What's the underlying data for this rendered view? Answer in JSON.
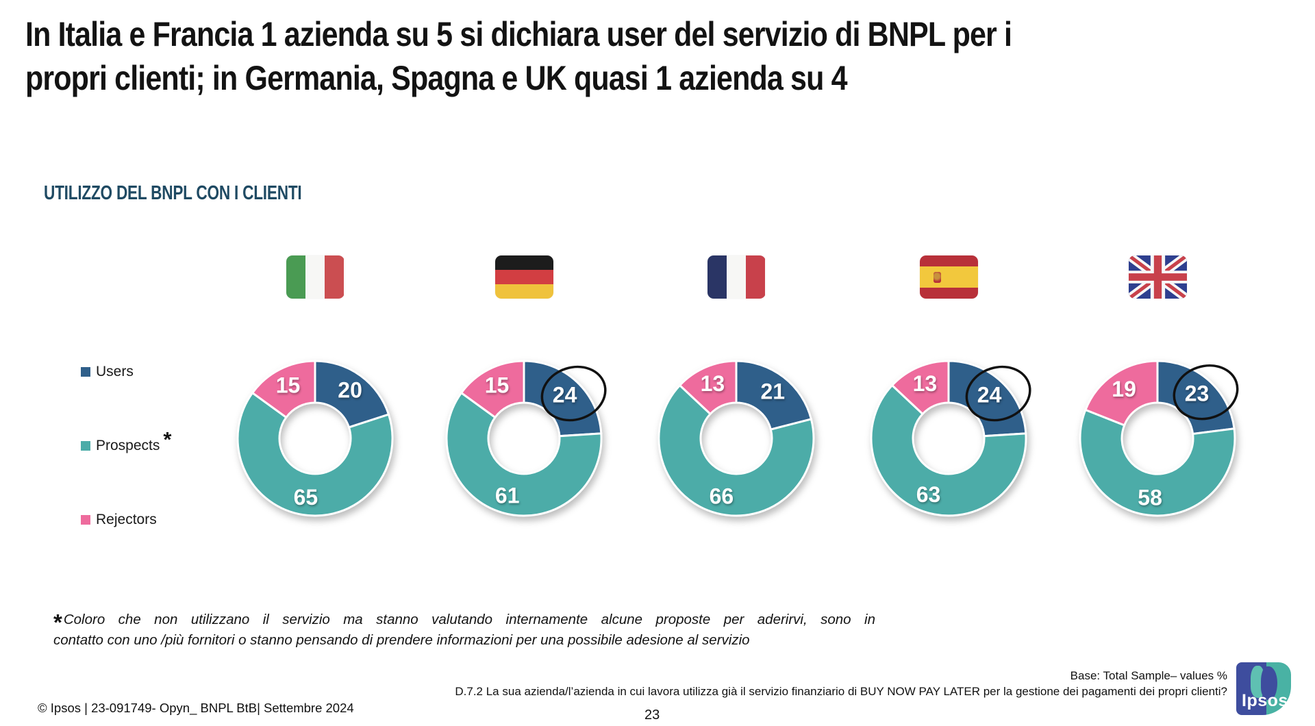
{
  "title": {
    "lines": [
      "In Italia e Francia 1 azienda su 5 si dichiara user del servizio di BNPL per i",
      "propri clienti; in Germania, Spagna e UK quasi 1 azienda su 4"
    ]
  },
  "section_heading": "UTILIZZO DEL BNPL CON I CLIENTI",
  "legend": {
    "items": [
      {
        "id": "users",
        "label": "Users",
        "suffix": "",
        "color": "#2F5F8A"
      },
      {
        "id": "prospects",
        "label": "Prospects",
        "suffix": "*",
        "color": "#4CACA8"
      },
      {
        "id": "rejectors",
        "label": "Rejectors",
        "suffix": "",
        "color": "#EE6B9D"
      }
    ]
  },
  "chart_data": {
    "type": "pie",
    "variant": "donut",
    "unit": "% of companies",
    "segments": [
      "Users",
      "Prospects",
      "Rejectors"
    ],
    "colors": {
      "Users": "#2F5F8A",
      "Prospects": "#4CACA8",
      "Rejectors": "#EE6B9D"
    },
    "countries": [
      {
        "name": "Italia",
        "code": "it",
        "values": {
          "Users": 20,
          "Prospects": 65,
          "Rejectors": 15
        },
        "users_circled": false
      },
      {
        "name": "Germania",
        "code": "de",
        "values": {
          "Users": 24,
          "Prospects": 61,
          "Rejectors": 15
        },
        "users_circled": true
      },
      {
        "name": "Francia",
        "code": "fr",
        "values": {
          "Users": 21,
          "Prospects": 66,
          "Rejectors": 13
        },
        "users_circled": false
      },
      {
        "name": "Spagna",
        "code": "es",
        "values": {
          "Users": 24,
          "Prospects": 63,
          "Rejectors": 13
        },
        "users_circled": true
      },
      {
        "name": "UK",
        "code": "uk",
        "values": {
          "Users": 23,
          "Prospects": 58,
          "Rejectors": 19
        },
        "users_circled": true
      }
    ]
  },
  "footnote": {
    "asterisk": "*",
    "lines": [
      "Coloro che non utilizzano il servizio ma stanno valutando internamente alcune proposte per aderirvi, sono in",
      "contatto con uno /più fornitori o stanno pensando di prendere informazioni per una possibile adesione al servizio"
    ]
  },
  "footer": {
    "base": "Base: Total Sample– values %",
    "question": "D.7.2 La sua azienda/l’azienda in cui lavora utilizza già il servizio finanziario di BUY NOW PAY LATER per la gestione dei pagamenti dei propri clienti?",
    "copyright": "© Ipsos | 23-091749- Opyn_ BNPL BtB| Settembre 2024",
    "page_number": "23",
    "logo_text": "Ipsos"
  }
}
